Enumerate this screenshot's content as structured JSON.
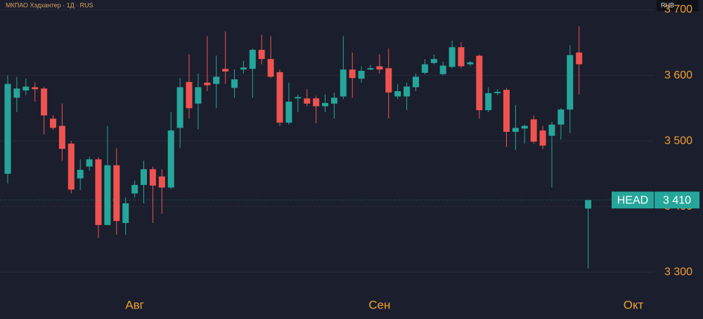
{
  "chart_data": {
    "type": "candlestick",
    "title": "МКПАО Хэдхантер · 1Д · RUS",
    "currency": "RUB",
    "categories": [
      null,
      null,
      null,
      null,
      null,
      null,
      null,
      null,
      null,
      null,
      null,
      null,
      null,
      null,
      "Авг",
      null,
      null,
      null,
      null,
      null,
      null,
      null,
      null,
      null,
      null,
      null,
      null,
      null,
      null,
      null,
      null,
      null,
      null,
      null,
      null,
      null,
      null,
      null,
      null,
      null,
      null,
      "Сен",
      null,
      null,
      null,
      null,
      null,
      null,
      null,
      null,
      null,
      null,
      null,
      null,
      null,
      null,
      null,
      null,
      null,
      null,
      null,
      null,
      null,
      null,
      null,
      null,
      null,
      null,
      null,
      "Окт",
      null,
      null
    ],
    "open": [
      3450,
      3566,
      3577,
      3582,
      3580,
      3534,
      3523,
      3496,
      3443,
      3461,
      3472,
      3372,
      3463,
      3375,
      3420,
      3433,
      3457,
      3446,
      3429,
      3520,
      3590,
      3557,
      3589,
      3587,
      3610,
      3581,
      3609,
      3610,
      3639,
      3625,
      3605,
      3528,
      3565,
      3565,
      3565,
      3553,
      3557,
      3568,
      3609,
      3595,
      3609,
      3614,
      3611,
      3568,
      3568,
      3582,
      3604,
      3619,
      3602,
      3613,
      3643,
      3617,
      3630,
      3547,
      3573,
      3578,
      3514,
      3519,
      3533,
      3516,
      3508,
      3525,
      3548,
      3635,
      3397,
      null,
      null,
      null,
      null,
      null,
      null,
      null
    ],
    "high": [
      3600,
      3598,
      3595,
      3590,
      3583,
      3539,
      3557,
      3500,
      3472,
      3476,
      3475,
      3523,
      3489,
      3414,
      3440,
      3470,
      3461,
      3457,
      3544,
      3596,
      3632,
      3603,
      3660,
      3630,
      3667,
      3609,
      3622,
      3641,
      3662,
      3660,
      3609,
      3589,
      3571,
      3579,
      3569,
      3571,
      3574,
      3660,
      3635,
      3614,
      3616,
      3632,
      3641,
      3587,
      3589,
      3603,
      3625,
      3632,
      3621,
      3653,
      3651,
      3622,
      3632,
      3582,
      3579,
      3581,
      3555,
      3525,
      3539,
      3523,
      3529,
      3550,
      3646,
      3675,
      3410,
      null,
      null,
      null,
      null,
      null,
      null,
      null
    ],
    "low": [
      3435,
      3544,
      3570,
      3560,
      3510,
      3517,
      3470,
      3420,
      3425,
      3455,
      3352,
      3371,
      3357,
      3357,
      3414,
      3405,
      3375,
      3389,
      3427,
      3489,
      3534,
      3518,
      3576,
      3550,
      3587,
      3566,
      3603,
      3566,
      3617,
      3596,
      3523,
      3525,
      3544,
      3553,
      3527,
      3544,
      3534,
      3564,
      3566,
      3589,
      3608,
      3603,
      3534,
      3564,
      3547,
      3576,
      3602,
      3617,
      3600,
      3611,
      3611,
      3614,
      3534,
      3544,
      3570,
      3491,
      3486,
      3496,
      3496,
      3488,
      3429,
      3502,
      3512,
      3571,
      3306,
      null,
      null,
      null,
      null,
      null,
      null,
      null
    ],
    "close": [
      3587,
      3580,
      3583,
      3579,
      3539,
      3520,
      3488,
      3426,
      3456,
      3472,
      3372,
      3463,
      3378,
      3405,
      3433,
      3457,
      3432,
      3429,
      3516,
      3582,
      3550,
      3582,
      3585,
      3598,
      3606,
      3594,
      3612,
      3639,
      3625,
      3598,
      3528,
      3560,
      3567,
      3557,
      3553,
      3558,
      3566,
      3609,
      3596,
      3607,
      3611,
      3609,
      3574,
      3576,
      3583,
      3598,
      3617,
      3625,
      3615,
      3643,
      3614,
      3620,
      3547,
      3573,
      3575,
      3514,
      3520,
      3523,
      3499,
      3493,
      3525,
      3548,
      3631,
      3617,
      3410,
      null,
      null,
      null,
      null,
      null,
      null,
      null
    ],
    "up_color": "#26a69a",
    "down_color": "#ef5350",
    "ylim": [
      3266,
      3715
    ],
    "yticks": [
      {
        "value": 3300,
        "label": "3 300"
      },
      {
        "value": 3400,
        "label": "3 400"
      },
      {
        "value": 3500,
        "label": "3 500"
      },
      {
        "value": 3600,
        "label": "3 600"
      },
      {
        "value": 3700,
        "label": "3 700"
      }
    ],
    "grid": true,
    "last_price": {
      "label": "HEAD",
      "value": 3410,
      "value_label": "3 410"
    }
  }
}
